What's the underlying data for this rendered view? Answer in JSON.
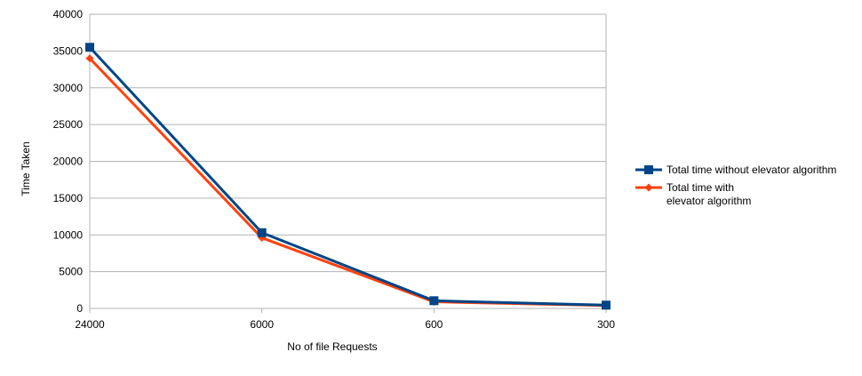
{
  "chart_data": {
    "type": "line",
    "categories": [
      "24000",
      "6000",
      "600",
      "300"
    ],
    "xlabel": "No of file Requests",
    "ylabel": "Time Taken",
    "ylim": [
      0,
      40000
    ],
    "yticks": [
      0,
      5000,
      10000,
      15000,
      20000,
      25000,
      30000,
      35000,
      40000
    ],
    "grid": "horizontal",
    "legend_position": "right",
    "series": [
      {
        "name": "Total time without elevator algorithm",
        "legend_lines": [
          "Total time without elevator algorithm"
        ],
        "values": [
          35500,
          10300,
          1050,
          450
        ],
        "color": "#004586",
        "marker": "square"
      },
      {
        "name": "Total time with elevator algorithm",
        "legend_lines": [
          "Total time with",
          "elevator algorithm"
        ],
        "values": [
          34000,
          9600,
          900,
          400
        ],
        "color": "#ff420e",
        "marker": "diamond"
      }
    ]
  }
}
